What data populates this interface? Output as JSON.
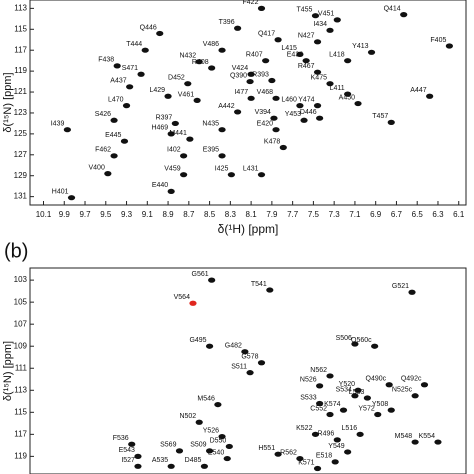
{
  "chart_data": [
    {
      "type": "scatter",
      "x_label": "δ(¹H) [ppm]",
      "y_label": "δ(¹⁵N) [ppm]",
      "xlim": [
        10.23,
        6.03
      ],
      "ylim": [
        112.2,
        131.8
      ],
      "xticks": [
        10.1,
        9.9,
        9.7,
        9.5,
        9.3,
        9.1,
        8.9,
        8.7,
        8.5,
        8.3,
        8.1,
        7.9,
        7.7,
        7.5,
        7.3,
        7.1,
        6.9,
        6.7,
        6.5,
        6.3,
        6.1
      ],
      "yticks": [
        113,
        115,
        117,
        119,
        121,
        123,
        125,
        127,
        129,
        131
      ],
      "series": [
        {
          "color": "#111111",
          "labels": [
            "H401",
            "I439",
            "V400",
            "F462",
            "S426",
            "E445",
            "L470",
            "A437",
            "F438",
            "S471",
            "T444",
            "Q446",
            "N432",
            "R408",
            "V486",
            "T396",
            "F422",
            "Q417",
            "R407",
            "L415",
            "V451",
            "I434",
            "N427",
            "L418",
            "Y413",
            "E436",
            "F405",
            "Q414",
            "T455",
            "V424",
            "Q390",
            "R393",
            "R467",
            "K475",
            "L411",
            "D452",
            "V461",
            "L429",
            "I477",
            "V468",
            "A442",
            "Y474",
            "A450",
            "T457",
            "A447",
            "R397",
            "H469",
            "M441",
            "L460",
            "V394",
            "Y453",
            "E420",
            "N435",
            "I402",
            "K478",
            "E395",
            "V459",
            "E440",
            "I425",
            "L431",
            "D446"
          ],
          "x": [
            9.83,
            9.87,
            9.48,
            9.42,
            9.42,
            9.32,
            9.3,
            9.27,
            9.39,
            9.16,
            9.12,
            8.98,
            8.6,
            8.48,
            8.38,
            8.23,
            8.0,
            7.84,
            7.96,
            7.63,
            7.27,
            7.34,
            7.46,
            7.17,
            6.94,
            7.57,
            6.19,
            6.63,
            7.48,
            8.1,
            8.11,
            7.9,
            7.46,
            7.34,
            7.17,
            8.71,
            8.62,
            8.9,
            8.1,
            7.86,
            8.23,
            7.46,
            7.07,
            6.75,
            6.38,
            8.83,
            8.87,
            8.69,
            7.63,
            7.88,
            7.59,
            7.86,
            8.38,
            8.75,
            7.79,
            8.38,
            8.75,
            8.87,
            8.29,
            8.0,
            7.44
          ],
          "values": [
            131.1,
            124.6,
            128.8,
            127.1,
            123.7,
            125.7,
            122.3,
            120.5,
            118.5,
            119.3,
            117.0,
            115.4,
            118.1,
            118.7,
            117.0,
            114.9,
            113.0,
            116.0,
            118.0,
            117.4,
            114.1,
            115.1,
            116.2,
            118.0,
            117.2,
            118.0,
            116.6,
            113.6,
            113.7,
            119.3,
            120.0,
            119.9,
            119.1,
            120.2,
            121.2,
            120.2,
            121.8,
            121.4,
            121.6,
            121.6,
            122.9,
            122.3,
            122.1,
            123.9,
            121.4,
            124.0,
            125.0,
            125.5,
            122.3,
            123.5,
            123.7,
            124.6,
            124.6,
            127.1,
            126.3,
            127.1,
            128.9,
            130.5,
            128.9,
            128.9,
            123.5
          ]
        }
      ]
    },
    {
      "type": "scatter",
      "panel_label": "(b)",
      "y_label": "δ(¹⁵N) [ppm]",
      "xlim": [
        10.23,
        6.03
      ],
      "ylim": [
        101.9,
        120.6
      ],
      "yticks": [
        103,
        105,
        107,
        109,
        111,
        113,
        115,
        117,
        119
      ],
      "series": [
        {
          "color": "#111111",
          "labels": [
            "G561",
            "T541",
            "G521",
            "G495",
            "G482",
            "S506",
            "Q560c",
            "G578",
            "S511",
            "N562",
            "N526",
            "Y520",
            "Q490c",
            "Q492c",
            "L553",
            "S534",
            "N525c",
            "S533",
            "M546",
            "C552",
            "K574",
            "Y572",
            "Y508",
            "N502",
            "Y526",
            "D550",
            "K522",
            "L516",
            "R496",
            "M548",
            "K554",
            "F536",
            "S569",
            "S509",
            "H551",
            "R562",
            "Y549",
            "E543",
            "I527",
            "A535",
            "D485",
            "E540",
            "K571",
            "E518"
          ],
          "x": [
            8.48,
            7.92,
            6.55,
            8.5,
            8.16,
            7.1,
            6.91,
            8.0,
            8.11,
            7.34,
            7.44,
            7.07,
            6.77,
            6.43,
            6.98,
            7.1,
            6.52,
            7.44,
            8.42,
            7.34,
            7.21,
            6.88,
            6.75,
            8.6,
            8.38,
            8.31,
            7.48,
            7.05,
            7.27,
            6.52,
            6.3,
            9.25,
            8.79,
            8.5,
            7.84,
            7.63,
            7.17,
            9.19,
            9.19,
            8.87,
            8.55,
            8.33,
            7.46,
            7.29
          ],
          "values": [
            103.0,
            103.9,
            104.1,
            109.0,
            109.5,
            108.8,
            109.0,
            110.5,
            111.4,
            111.7,
            112.6,
            113.0,
            112.5,
            112.5,
            113.7,
            113.5,
            113.5,
            114.2,
            114.3,
            115.2,
            114.8,
            115.2,
            114.8,
            115.9,
            117.2,
            118.1,
            117.0,
            117.0,
            117.5,
            117.7,
            117.7,
            117.9,
            118.5,
            118.5,
            118.8,
            119.2,
            118.6,
            119.0,
            119.9,
            119.9,
            119.9,
            119.2,
            120.1,
            119.5
          ]
        },
        {
          "color": "#e0261e",
          "labels": [
            "V564"
          ],
          "x": [
            8.66
          ],
          "values": [
            105.1
          ]
        }
      ]
    }
  ]
}
